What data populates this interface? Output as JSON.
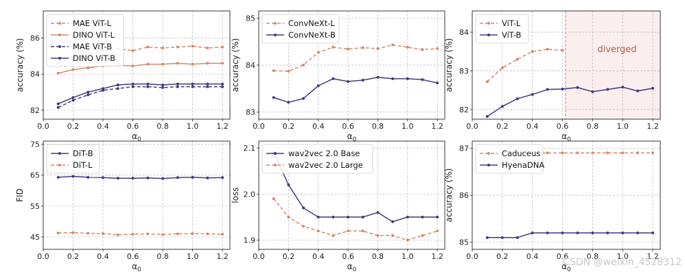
{
  "colors": {
    "orange": "#d4896a",
    "purple": "#3d3a7e",
    "grid": "#b8b8b8",
    "diverged_text": "#b0604a",
    "diverged_fill": "#fbeeee"
  },
  "watermark": "CSDN @weixin_4528312",
  "chart_data": [
    {
      "type": "line",
      "xlabel": "α0",
      "ylabel": "accuracy (%)",
      "xlim": [
        0.0,
        1.25
      ],
      "ylim": [
        81.5,
        87.5
      ],
      "xticks": [
        0.0,
        0.2,
        0.4,
        0.6,
        0.8,
        1.0,
        1.2
      ],
      "yticks": [
        82,
        84,
        86
      ],
      "legend_position": "upper-left",
      "x": [
        0.1,
        0.2,
        0.3,
        0.4,
        0.5,
        0.6,
        0.7,
        0.8,
        0.9,
        1.0,
        1.1,
        1.2
      ],
      "series": [
        {
          "name": "MAE ViT-L",
          "color": "orange",
          "dashed": true,
          "values": [
            84.6,
            84.9,
            85.1,
            85.3,
            85.4,
            85.3,
            85.5,
            85.45,
            85.5,
            85.55,
            85.45,
            85.5
          ]
        },
        {
          "name": "DINO ViT-L",
          "color": "orange",
          "dashed": false,
          "values": [
            84.05,
            84.25,
            84.35,
            84.45,
            84.5,
            84.45,
            84.55,
            84.55,
            84.6,
            84.55,
            84.6,
            84.6
          ]
        },
        {
          "name": "MAE ViT-B",
          "color": "purple",
          "dashed": true,
          "values": [
            82.15,
            82.55,
            82.85,
            83.1,
            83.2,
            83.3,
            83.3,
            83.25,
            83.3,
            83.3,
            83.3,
            83.3
          ]
        },
        {
          "name": "DINO ViT-B",
          "color": "purple",
          "dashed": false,
          "values": [
            82.35,
            82.7,
            83.0,
            83.2,
            83.4,
            83.45,
            83.45,
            83.4,
            83.45,
            83.45,
            83.45,
            83.45
          ]
        }
      ]
    },
    {
      "type": "line",
      "xlabel": "α0",
      "ylabel": "accuracy (%)",
      "xlim": [
        0.0,
        1.25
      ],
      "ylim": [
        82.85,
        85.15
      ],
      "xticks": [
        0.0,
        0.2,
        0.4,
        0.6,
        0.8,
        1.0,
        1.2
      ],
      "yticks": [
        83,
        84,
        85
      ],
      "legend_position": "upper-left",
      "x": [
        0.1,
        0.2,
        0.3,
        0.4,
        0.5,
        0.6,
        0.7,
        0.8,
        0.9,
        1.0,
        1.1,
        1.2
      ],
      "series": [
        {
          "name": "ConvNeXt-L",
          "color": "orange",
          "dashed": true,
          "values": [
            83.88,
            83.87,
            84.0,
            84.27,
            84.38,
            84.34,
            84.37,
            84.35,
            84.43,
            84.38,
            84.33,
            84.35
          ]
        },
        {
          "name": "ConvNeXt-B",
          "color": "purple",
          "dashed": false,
          "values": [
            83.31,
            83.21,
            83.29,
            83.56,
            83.71,
            83.65,
            83.68,
            83.74,
            83.71,
            83.71,
            83.69,
            83.62
          ]
        }
      ]
    },
    {
      "type": "line",
      "xlabel": "α0",
      "ylabel": "accuracy (%)",
      "xlim": [
        0.0,
        1.25
      ],
      "ylim": [
        81.75,
        84.55
      ],
      "xticks": [
        0.0,
        0.2,
        0.4,
        0.6,
        0.8,
        1.0,
        1.2
      ],
      "yticks": [
        82,
        83,
        84
      ],
      "legend_position": "upper-left",
      "diverged_from": 0.62,
      "annotation": "diverged",
      "x_l": [
        0.1,
        0.2,
        0.3,
        0.4,
        0.5,
        0.6
      ],
      "x_b": [
        0.1,
        0.2,
        0.3,
        0.4,
        0.5,
        0.6,
        0.7,
        0.8,
        0.9,
        1.0,
        1.1,
        1.2
      ],
      "series": [
        {
          "name": "ViT-L",
          "color": "orange",
          "dashed": true,
          "x_key": "x_l",
          "values": [
            82.72,
            83.08,
            83.3,
            83.5,
            83.56,
            83.53
          ]
        },
        {
          "name": "ViT-B",
          "color": "purple",
          "dashed": false,
          "x_key": "x_b",
          "values": [
            81.82,
            82.08,
            82.28,
            82.39,
            82.52,
            82.53,
            82.57,
            82.46,
            82.52,
            82.58,
            82.48,
            82.55
          ]
        }
      ]
    },
    {
      "type": "line",
      "xlabel": "α0",
      "ylabel": "FID",
      "xlim": [
        0.0,
        1.25
      ],
      "ylim": [
        41,
        76
      ],
      "xticks": [
        0.0,
        0.2,
        0.4,
        0.6,
        0.8,
        1.0,
        1.2
      ],
      "yticks": [
        45,
        55,
        65,
        75
      ],
      "legend_position": "upper-left",
      "x": [
        0.1,
        0.2,
        0.3,
        0.4,
        0.5,
        0.6,
        0.7,
        0.8,
        0.9,
        1.0,
        1.1,
        1.2
      ],
      "series": [
        {
          "name": "DiT-B",
          "color": "purple",
          "dashed": false,
          "values": [
            64.3,
            64.6,
            64.3,
            64.2,
            64.0,
            64.0,
            64.1,
            63.9,
            64.2,
            64.3,
            64.1,
            64.2
          ]
        },
        {
          "name": "DiT-L",
          "color": "orange",
          "dashed": true,
          "values": [
            46.3,
            46.4,
            46.2,
            46.1,
            45.7,
            45.9,
            46.0,
            45.8,
            46.0,
            46.1,
            46.0,
            45.9
          ]
        }
      ]
    },
    {
      "type": "line",
      "xlabel": "α0",
      "ylabel": "loss",
      "xlim": [
        0.0,
        1.25
      ],
      "ylim": [
        1.88,
        2.115
      ],
      "xticks": [
        0.0,
        0.2,
        0.4,
        0.6,
        0.8,
        1.0,
        1.2
      ],
      "yticks": [
        1.9,
        2.0,
        2.1
      ],
      "legend_position": "upper-left",
      "x": [
        0.1,
        0.2,
        0.3,
        0.4,
        0.5,
        0.6,
        0.7,
        0.8,
        0.9,
        1.0,
        1.1,
        1.2
      ],
      "series": [
        {
          "name": "wav2vec 2.0 Base",
          "color": "purple",
          "dashed": false,
          "values": [
            2.09,
            2.02,
            1.97,
            1.95,
            1.95,
            1.95,
            1.95,
            1.96,
            1.94,
            1.95,
            1.95,
            1.95
          ]
        },
        {
          "name": "wav2vec 2.0 Large",
          "color": "orange",
          "dashed": true,
          "values": [
            1.99,
            1.95,
            1.93,
            1.92,
            1.91,
            1.92,
            1.92,
            1.91,
            1.91,
            1.9,
            1.91,
            1.92
          ]
        }
      ]
    },
    {
      "type": "line",
      "xlabel": "α0",
      "ylabel": "accuracy (%)",
      "xlim": [
        0.0,
        1.25
      ],
      "ylim": [
        84.85,
        87.15
      ],
      "xticks": [
        0.0,
        0.2,
        0.4,
        0.6,
        0.8,
        1.0,
        1.2
      ],
      "yticks": [
        85,
        86,
        87
      ],
      "legend_position": "upper-left",
      "x": [
        0.1,
        0.2,
        0.3,
        0.4,
        0.5,
        0.6,
        0.7,
        0.8,
        0.9,
        1.0,
        1.1,
        1.2
      ],
      "series": [
        {
          "name": "Caduceus",
          "color": "orange",
          "dashed": true,
          "values": [
            86.9,
            86.9,
            86.9,
            86.9,
            86.9,
            86.9,
            86.9,
            86.9,
            86.9,
            86.9,
            86.9,
            86.9
          ]
        },
        {
          "name": "HyenaDNA",
          "color": "purple",
          "dashed": false,
          "values": [
            85.1,
            85.1,
            85.1,
            85.2,
            85.2,
            85.2,
            85.2,
            85.2,
            85.2,
            85.2,
            85.2,
            85.2
          ]
        }
      ]
    }
  ]
}
